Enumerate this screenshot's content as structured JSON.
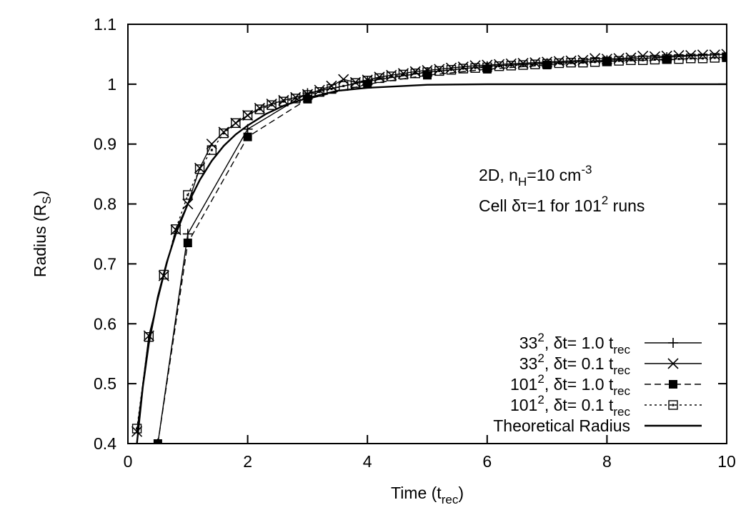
{
  "chart_data": {
    "type": "line",
    "xlabel": {
      "base": "Time (t",
      "sub": "rec",
      "tail": ")"
    },
    "ylabel": {
      "base": "Radius (R",
      "sub": "S",
      "tail": ")"
    },
    "xlim": [
      0,
      10
    ],
    "ylim": [
      0.4,
      1.1
    ],
    "x_ticks": [
      0,
      2,
      4,
      6,
      8,
      10
    ],
    "y_ticks": [
      0.4,
      0.5,
      0.6,
      0.7,
      0.8,
      0.9,
      1.0,
      1.1
    ],
    "x_tick_labels": [
      "0",
      "2",
      "4",
      "6",
      "8",
      "10"
    ],
    "y_tick_labels": [
      "0.4",
      "0.5",
      "0.6",
      "0.7",
      "0.8",
      "0.9",
      "1",
      "1.1"
    ],
    "grid": false,
    "legend_position": "bottom-right",
    "annotations": [
      {
        "parts": [
          {
            "t": "2D, n"
          },
          {
            "t": "H",
            "s": "sub"
          },
          {
            "t": "=10 cm"
          },
          {
            "t": "-3",
            "s": "sup"
          }
        ]
      },
      {
        "parts": [
          {
            "t": "Cell δτ=1 for 101"
          },
          {
            "t": "2",
            "s": "sup"
          },
          {
            "t": " runs"
          }
        ]
      }
    ],
    "series": [
      {
        "name": "33², δt= 1.0 t_rec",
        "label_parts": [
          {
            "t": "33"
          },
          {
            "t": "2",
            "s": "sup"
          },
          {
            "t": ", δt= 1.0 t"
          },
          {
            "t": "rec",
            "s": "sub"
          }
        ],
        "marker": "plus",
        "dash": "solid",
        "x": [
          0.5,
          1,
          2,
          3,
          4,
          5,
          6,
          7,
          8,
          9,
          10
        ],
        "y": [
          0.4,
          0.75,
          0.925,
          0.985,
          1.005,
          1.02,
          1.03,
          1.035,
          1.04,
          1.045,
          1.05
        ]
      },
      {
        "name": "33², δt= 0.1 t_rec",
        "label_parts": [
          {
            "t": "33"
          },
          {
            "t": "2",
            "s": "sup"
          },
          {
            "t": ", δt= 0.1 t"
          },
          {
            "t": "rec",
            "s": "sub"
          }
        ],
        "marker": "cross",
        "dash": "solid",
        "x": [
          0.15,
          0.35,
          0.6,
          0.8,
          1.0,
          1.2,
          1.4,
          1.6,
          1.8,
          2.0,
          2.2,
          2.4,
          2.6,
          2.8,
          3.0,
          3.2,
          3.4,
          3.6,
          3.8,
          4.0,
          4.2,
          4.4,
          4.6,
          4.8,
          5.0,
          5.2,
          5.4,
          5.6,
          5.8,
          6.0,
          6.2,
          6.4,
          6.6,
          6.8,
          7.0,
          7.2,
          7.4,
          7.6,
          7.8,
          8.0,
          8.2,
          8.4,
          8.6,
          8.8,
          9.0,
          9.2,
          9.4,
          9.6,
          9.8,
          10.0
        ],
        "y": [
          0.42,
          0.58,
          0.68,
          0.757,
          0.8,
          0.86,
          0.9,
          0.92,
          0.935,
          0.948,
          0.96,
          0.967,
          0.973,
          0.978,
          0.983,
          0.99,
          0.997,
          1.008,
          1.003,
          1.007,
          1.012,
          1.015,
          1.018,
          1.021,
          1.023,
          1.025,
          1.027,
          1.029,
          1.031,
          1.032,
          1.033,
          1.034,
          1.035,
          1.036,
          1.037,
          1.038,
          1.039,
          1.04,
          1.043,
          1.042,
          1.043,
          1.044,
          1.047,
          1.046,
          1.047,
          1.048,
          1.048,
          1.049,
          1.049,
          1.05
        ]
      },
      {
        "name": "101², δt= 1.0 t_rec",
        "label_parts": [
          {
            "t": "101"
          },
          {
            "t": "2",
            "s": "sup"
          },
          {
            "t": ", δt= 1.0 t"
          },
          {
            "t": "rec",
            "s": "sub"
          }
        ],
        "marker": "filled-square",
        "dash": "dashed",
        "x": [
          0.5,
          1,
          2,
          3,
          4,
          5,
          6,
          7,
          8,
          9,
          10
        ],
        "y": [
          0.4,
          0.735,
          0.912,
          0.975,
          1.0,
          1.015,
          1.025,
          1.032,
          1.038,
          1.041,
          1.045
        ]
      },
      {
        "name": "101², δt= 0.1 t_rec",
        "label_parts": [
          {
            "t": "101"
          },
          {
            "t": "2",
            "s": "sup"
          },
          {
            "t": ", δt= 0.1 t"
          },
          {
            "t": "rec",
            "s": "sub"
          }
        ],
        "marker": "open-square",
        "dash": "dotted",
        "x": [
          0.15,
          0.35,
          0.6,
          0.8,
          1.0,
          1.2,
          1.4,
          1.6,
          1.8,
          2.0,
          2.2,
          2.4,
          2.6,
          2.8,
          3.0,
          3.2,
          3.4,
          3.6,
          3.8,
          4.0,
          4.2,
          4.4,
          4.6,
          4.8,
          5.0,
          5.2,
          5.4,
          5.6,
          5.8,
          6.0,
          6.2,
          6.4,
          6.6,
          6.8,
          7.0,
          7.2,
          7.4,
          7.6,
          7.8,
          8.0,
          8.2,
          8.4,
          8.6,
          8.8,
          9.0,
          9.2,
          9.4,
          9.6,
          9.8,
          10.0
        ],
        "y": [
          0.425,
          0.578,
          0.682,
          0.758,
          0.815,
          0.858,
          0.89,
          0.918,
          0.935,
          0.948,
          0.958,
          0.965,
          0.971,
          0.976,
          0.982,
          0.987,
          0.992,
          0.997,
          1.002,
          1.006,
          1.01,
          1.013,
          1.016,
          1.018,
          1.02,
          1.022,
          1.024,
          1.026,
          1.027,
          1.028,
          1.03,
          1.031,
          1.032,
          1.033,
          1.034,
          1.035,
          1.036,
          1.036,
          1.037,
          1.038,
          1.039,
          1.04,
          1.04,
          1.041,
          1.042,
          1.042,
          1.043,
          1.043,
          1.044,
          1.045
        ]
      },
      {
        "name": "Theoretical Radius",
        "label_parts": [
          {
            "t": "Theoretical Radius"
          }
        ],
        "marker": "none",
        "dash": "solid-thick",
        "x": [
          0.15,
          0.25,
          0.35,
          0.5,
          0.65,
          0.8,
          1.0,
          1.2,
          1.4,
          1.6,
          1.8,
          2.0,
          2.3,
          2.6,
          3.0,
          3.5,
          4.0,
          5.0,
          6.0,
          7.0,
          8.0,
          9.0,
          10.0
        ],
        "y": [
          0.4,
          0.495,
          0.567,
          0.645,
          0.703,
          0.75,
          0.8,
          0.84,
          0.872,
          0.897,
          0.916,
          0.931,
          0.95,
          0.964,
          0.977,
          0.989,
          0.994,
          0.999,
          1.0,
          1.0,
          1.0,
          1.0,
          1.0
        ]
      }
    ]
  }
}
